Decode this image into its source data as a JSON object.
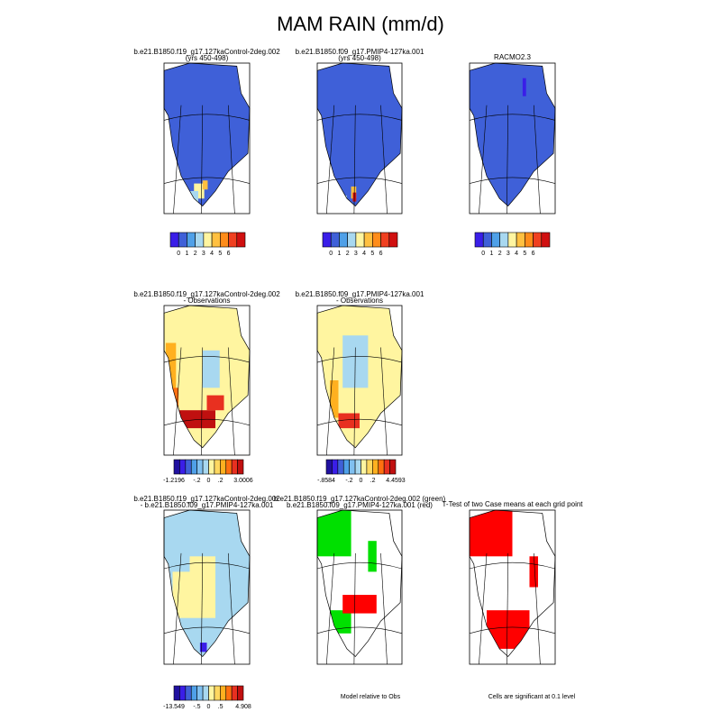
{
  "title": "MAM RAIN (mm/d)",
  "panels": [
    {
      "title": [
        "b.e21.B1850.f19_g17.127kaControl-2deg.002",
        "(yrs 450-498)"
      ]
    },
    {
      "title": [
        "b.e21.B1850.f09_g17.PMIP4-127ka.001",
        "(yrs 450-498)"
      ]
    },
    {
      "title": [
        "RACMO2.3"
      ]
    },
    {
      "title": [
        "b.e21.B1850.f19_g17.127kaControl-2deg.002",
        "- Observations"
      ]
    },
    {
      "title": [
        "b.e21.B1850.f09_g17.PMIP4-127ka.001",
        "- Observations"
      ]
    },
    {
      "title": [
        "b.e21.B1850.f19_g17.127kaControl-2deg.002",
        "- b.e21.B1850.f09_g17.PMIP4-127ka.001"
      ]
    },
    {
      "title": [
        "b.e21.B1850.f19_g17.127kaControl-2deg.002 (green)",
        "b.e21.B1850.f09_g17.PMIP4-127ka.001 (red)"
      ]
    },
    {
      "title": [
        "T-Test of two Case means at each grid point"
      ]
    }
  ],
  "colorbars": [
    {
      "colors": [
        "#3a1ee8",
        "#3f60d8",
        "#4fa0e8",
        "#a8d8f0",
        "#fff5a0",
        "#ffc040",
        "#ff8c1a",
        "#f04020",
        "#d01010"
      ],
      "labels": [
        "0",
        "1",
        "2",
        "3",
        "4",
        "5",
        "6"
      ]
    },
    {
      "colors": [
        "#3a1ee8",
        "#3f60d8",
        "#4fa0e8",
        "#a8d8f0",
        "#fff5a0",
        "#ffc040",
        "#ff8c1a",
        "#f04020",
        "#d01010"
      ],
      "labels": [
        "0",
        "1",
        "2",
        "3",
        "4",
        "5",
        "6"
      ]
    },
    {
      "colors": [
        "#3a1ee8",
        "#3f60d8",
        "#4fa0e8",
        "#a8d8f0",
        "#fff5a0",
        "#ffc040",
        "#ff8c1a",
        "#f04020",
        "#d01010"
      ],
      "labels": [
        "0",
        "1",
        "2",
        "3",
        "4",
        "5",
        "6"
      ]
    },
    {
      "colors": [
        "#2010a0",
        "#3a1ee8",
        "#3f60d8",
        "#4fa0e8",
        "#80c0f0",
        "#a8d8f0",
        "#fff5a0",
        "#ffd860",
        "#ffb020",
        "#ff7010",
        "#e83020",
        "#c01010"
      ],
      "labels": [
        "-1.2196",
        "-.2",
        "0",
        ".2",
        "3.0006"
      ]
    },
    {
      "colors": [
        "#2010a0",
        "#3a1ee8",
        "#3f60d8",
        "#4fa0e8",
        "#80c0f0",
        "#a8d8f0",
        "#fff5a0",
        "#ffd860",
        "#ffb020",
        "#ff7010",
        "#e83020",
        "#c01010"
      ],
      "labels": [
        "-.8584",
        "-.2",
        "0",
        ".2",
        "4.4593"
      ]
    },
    {
      "colors": [
        "#2010a0",
        "#3a1ee8",
        "#3f60d8",
        "#4fa0e8",
        "#80c0f0",
        "#a8d8f0",
        "#fff5a0",
        "#ffd860",
        "#ffb020",
        "#ff7010",
        "#e83020",
        "#c01010"
      ],
      "labels": [
        "-13.549",
        "-.5",
        "0",
        ".5",
        "4.908"
      ]
    }
  ],
  "notes": [
    "Model relative to Obs",
    "Cells are significant at 0.1 level"
  ]
}
